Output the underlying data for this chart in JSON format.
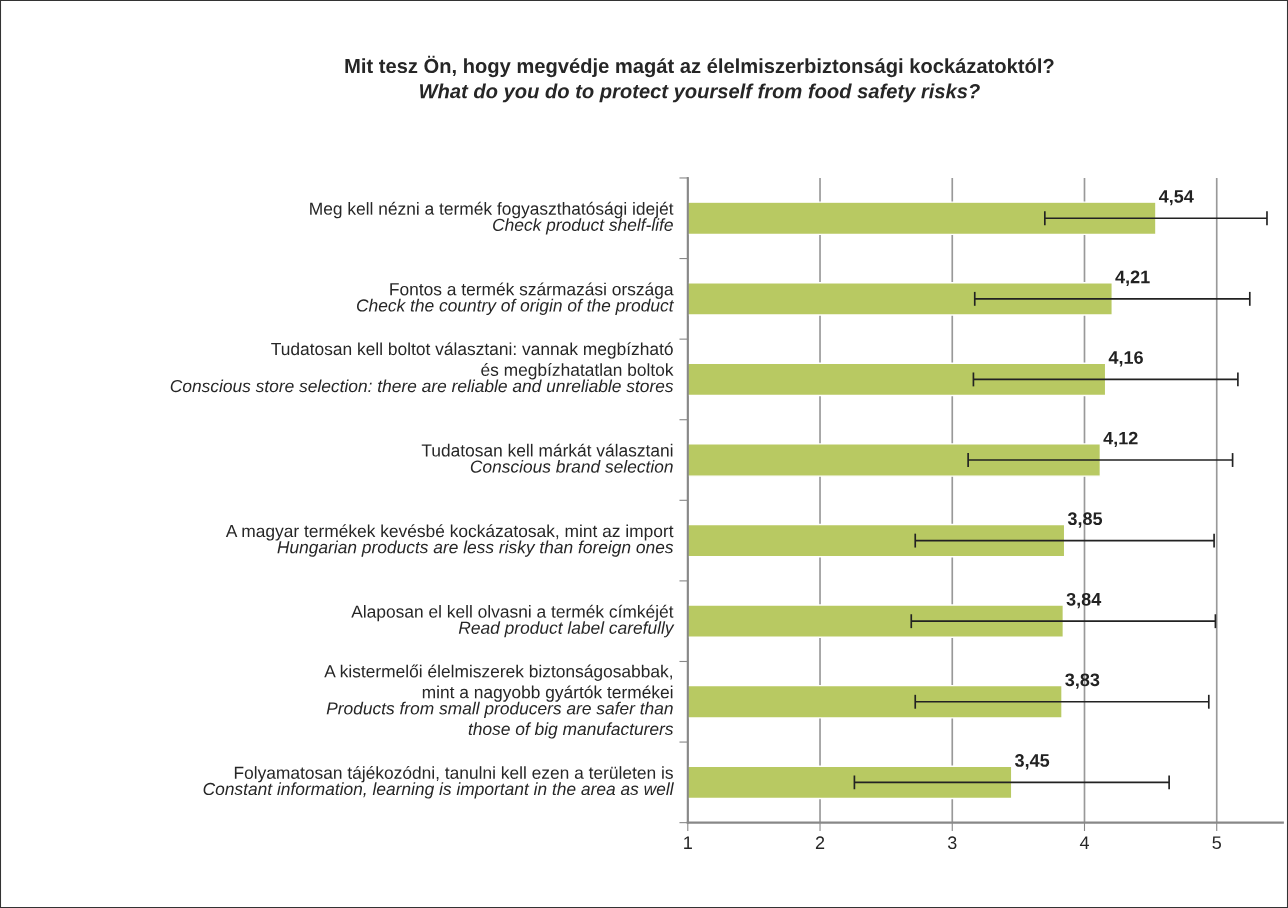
{
  "chart_data": {
    "type": "bar",
    "orientation": "horizontal",
    "title": "Mit tesz Ön, hogy megvédje magát az élelmiszerbiztonsági kockázatoktól?",
    "subtitle": "What do you do to protect yourself from food safety risks?",
    "categories": [
      "Meg kell nézni a termék fogyaszthatósági idejét\nCheck product shelf-life",
      "Fontos a termék származási országa\nCheck the country of origin of the product",
      "Tudatosan kell boltot választani: vannak megbízható\nés megbízhatatlan boltok\nConscious store selection: there are reliable and unreliable stores",
      "Tudatosan kell márkát választani\nConscious brand selection",
      "A magyar termékek kevésbé kockázatosak, mint az import\nHungarian products are less risky than foreign ones",
      "Alaposan el kell olvasni a termék címkéjét\nRead product label carefully",
      "A kistermelői élelmiszerek biztonságosabbak,\nmint a nagyobb gyártók termékei\nProducts from small producers are safer than\nthose of big manufacturers",
      "Folyamatosan tájékozódni, tanulni kell ezen a területen is\nConstant information, learning is important in the area as well"
    ],
    "values": [
      4.54,
      4.21,
      4.16,
      4.12,
      3.85,
      3.84,
      3.83,
      3.45
    ],
    "value_labels": [
      "4,54",
      "4,21",
      "4,16",
      "4,12",
      "3,85",
      "3,84",
      "3,83",
      "3,45"
    ],
    "errors": [
      0.84,
      1.04,
      1.0,
      1.0,
      1.13,
      1.15,
      1.11,
      1.19
    ],
    "color": "#b8c962",
    "xlim": [
      1,
      5.5
    ],
    "xticks": [
      1,
      2,
      3,
      4,
      5
    ],
    "grid": "x"
  }
}
